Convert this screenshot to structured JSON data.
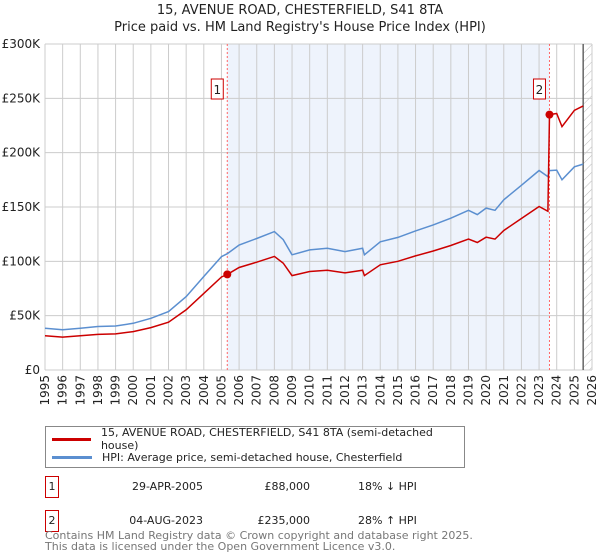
{
  "chart_data": {
    "type": "line",
    "title": "15, AVENUE ROAD, CHESTERFIELD, S41 8TA",
    "subtitle": "Price paid vs. HM Land Registry's House Price Index (HPI)",
    "xlim": [
      1995,
      2026
    ],
    "ylim": [
      0,
      300
    ],
    "y_unit": "£K",
    "y_ticks": [
      0,
      50,
      100,
      150,
      200,
      250,
      300
    ],
    "y_tick_labels": [
      "£0",
      "£50K",
      "£100K",
      "£150K",
      "£200K",
      "£250K",
      "£300K"
    ],
    "x_ticks": [
      1995,
      1996,
      1997,
      1998,
      1999,
      2000,
      2001,
      2002,
      2003,
      2004,
      2005,
      2006,
      2007,
      2008,
      2009,
      2010,
      2011,
      2012,
      2013,
      2014,
      2015,
      2016,
      2017,
      2018,
      2019,
      2020,
      2021,
      2022,
      2023,
      2024,
      2025,
      2026
    ],
    "grid": true,
    "x": [
      1995,
      1996,
      1997,
      1998,
      1999,
      2000,
      2001,
      2002,
      2003,
      2004,
      2005,
      2005.33,
      2006,
      2007,
      2008,
      2008.5,
      2009,
      2010,
      2011,
      2012,
      2013,
      2013.1,
      2014,
      2015,
      2016,
      2017,
      2018,
      2019,
      2019.5,
      2020,
      2020.5,
      2021,
      2022,
      2023,
      2023.5,
      2023.59,
      2024,
      2024.3,
      2025,
      2025.5
    ],
    "series": [
      {
        "name": "15, AVENUE ROAD, CHESTERFIELD, S41 8TA (semi-detached house)",
        "color": "#cc0000",
        "values": [
          31.5,
          30.3,
          31.5,
          32.8,
          33.2,
          35.3,
          39,
          44,
          55.4,
          70.5,
          85.6,
          88,
          94.3,
          99.2,
          104.5,
          98.4,
          86.9,
          90.6,
          91.8,
          89.4,
          91.8,
          86.9,
          96.8,
          100,
          105,
          109.5,
          114.6,
          120.5,
          117.3,
          122.2,
          120.5,
          128.4,
          139.4,
          150.5,
          146,
          235,
          236,
          224,
          239,
          243
        ]
      },
      {
        "name": "HPI: Average price, semi-detached house, Chesterfield",
        "color": "#5b8fd0",
        "values": [
          38.4,
          37,
          38.4,
          40,
          40.5,
          43,
          47.6,
          53.7,
          67.5,
          86,
          104.4,
          107,
          115,
          121,
          127.4,
          120,
          106,
          110.5,
          112,
          109,
          112,
          106,
          118,
          122,
          128,
          133.5,
          139.7,
          147,
          143,
          149,
          147,
          156.6,
          170,
          183.6,
          178,
          183.5,
          184,
          175,
          187,
          189.5
        ]
      }
    ],
    "shaded_range": [
      2005.33,
      2023.59
    ],
    "forecast_from": 2025.5,
    "sales": [
      {
        "label": "1",
        "x": 2005.33,
        "value": 88,
        "date": "29-APR-2005",
        "price": "£88,000",
        "hpi": "18% ↓ HPI"
      },
      {
        "label": "2",
        "x": 2023.59,
        "value": 235,
        "date": "04-AUG-2023",
        "price": "£235,000",
        "hpi": "28% ↑ HPI"
      }
    ]
  },
  "footer": {
    "line1": "Contains HM Land Registry data © Crown copyright and database right 2025.",
    "line2": "This data is licensed under the Open Government Licence v3.0."
  }
}
